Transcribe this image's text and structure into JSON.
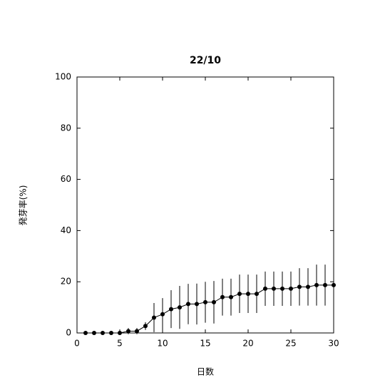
{
  "chart_data": {
    "type": "line",
    "title": "22/10",
    "x_label": "日数",
    "y_label": "発芽率(%)",
    "x": [
      1,
      2,
      3,
      4,
      5,
      6,
      7,
      8,
      9,
      10,
      11,
      12,
      13,
      14,
      15,
      16,
      17,
      18,
      19,
      20,
      21,
      22,
      23,
      24,
      25,
      26,
      27,
      28,
      29,
      30
    ],
    "series": [
      {
        "color": "#000000",
        "values": [
          0,
          0,
          0,
          0,
          0,
          0.7,
          0.7,
          2.7,
          6,
          7.3,
          9.3,
          10,
          11.3,
          11.3,
          12,
          12,
          14,
          14,
          15.3,
          15.3,
          15.3,
          17.3,
          17.3,
          17.3,
          17.3,
          18,
          18,
          18.7,
          18.7,
          18.7
        ],
        "errors": [
          0,
          0,
          0,
          0,
          0,
          1.2,
          1.2,
          1.5,
          5.7,
          6.3,
          7.4,
          8.4,
          7.9,
          8,
          8,
          8.3,
          7.2,
          7.2,
          7.5,
          7.5,
          7.5,
          6.7,
          6.7,
          6.7,
          6.7,
          7.3,
          7.3,
          8,
          8,
          8
        ]
      }
    ],
    "xlim": [
      0,
      30
    ],
    "xticks": [
      0,
      5,
      10,
      15,
      20,
      25,
      30
    ],
    "ylim": [
      0,
      100
    ],
    "yticks": [
      0,
      20,
      40,
      60,
      80,
      100
    ]
  }
}
